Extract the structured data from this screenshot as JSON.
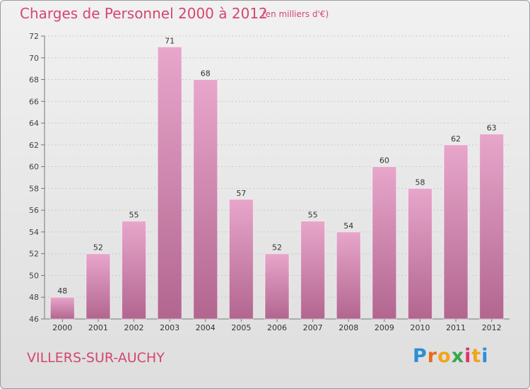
{
  "header": {
    "title": "Charges de Personnel 2000 à 2012",
    "subtitle": "(en milliers d'€)"
  },
  "footer": {
    "commune": "VILLERS-SUR-AUCHY",
    "logo": [
      "P",
      "r",
      "o",
      "x",
      "i",
      "t",
      "i"
    ]
  },
  "colors": {
    "title": "#d4466f",
    "bar_light": "#e8a6cb",
    "bar_dark": "#b2668f",
    "background_top": "#f1f1f1",
    "background_bottom": "#dedede"
  },
  "chart_data": {
    "type": "bar",
    "title": "Charges de Personnel 2000 à 2012",
    "subtitle": "(en milliers d'€)",
    "categories": [
      "2000",
      "2001",
      "2002",
      "2003",
      "2004",
      "2005",
      "2006",
      "2007",
      "2008",
      "2009",
      "2010",
      "2011",
      "2012"
    ],
    "values": [
      48,
      52,
      55,
      71,
      68,
      57,
      52,
      55,
      54,
      60,
      58,
      62,
      63
    ],
    "data_labels": [
      "48",
      "52",
      "55",
      "71",
      "68",
      "57",
      "52",
      "55",
      "54",
      "60",
      "58",
      "62",
      "63"
    ],
    "ylim": [
      46,
      72
    ],
    "yticks": [
      46,
      48,
      50,
      52,
      54,
      56,
      58,
      60,
      62,
      64,
      66,
      68,
      70,
      72
    ],
    "grid": true,
    "legend": "none"
  }
}
